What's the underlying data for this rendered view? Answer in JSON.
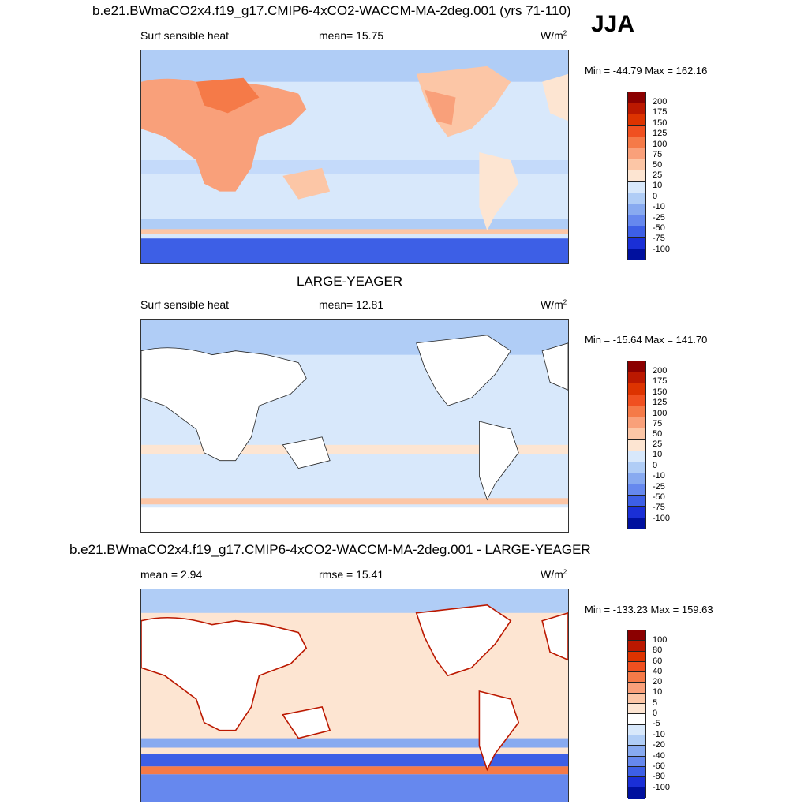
{
  "season": "JJA",
  "panels": [
    {
      "title": "b.e21.BWmaCO2x4.f19_g17.CMIP6-4xCO2-WACCM-MA-2deg.001 (yrs 71-110)",
      "left_label": "Surf sensible heat",
      "mid_label": "mean=  15.75",
      "units": "W/m",
      "units_sup": "2",
      "minmax": "Min = -44.79 Max = 162.16",
      "colorbar_labels": [
        "200",
        "175",
        "150",
        "125",
        "100",
        "75",
        "50",
        "25",
        "10",
        "0",
        "-10",
        "-25",
        "-50",
        "-75",
        "-100"
      ],
      "colorbar_colors": [
        "#8b0000",
        "#bb1800",
        "#dd3300",
        "#f05020",
        "#f57a48",
        "#f9a07a",
        "#fcc6a6",
        "#fde5d2",
        "#d8e8fb",
        "#b0cdf6",
        "#88aaf0",
        "#6688ee",
        "#3d5fe6",
        "#1a2fd6",
        "#00109e"
      ]
    },
    {
      "title": "LARGE-YEAGER",
      "left_label": "Surf sensible heat",
      "mid_label": "mean=  12.81",
      "units": "W/m",
      "units_sup": "2",
      "minmax": "Min = -15.64 Max = 141.70",
      "colorbar_labels": [
        "200",
        "175",
        "150",
        "125",
        "100",
        "75",
        "50",
        "25",
        "10",
        "0",
        "-10",
        "-25",
        "-50",
        "-75",
        "-100"
      ],
      "colorbar_colors": [
        "#8b0000",
        "#bb1800",
        "#dd3300",
        "#f05020",
        "#f57a48",
        "#f9a07a",
        "#fcc6a6",
        "#fde5d2",
        "#d8e8fb",
        "#b0cdf6",
        "#88aaf0",
        "#6688ee",
        "#3d5fe6",
        "#1a2fd6",
        "#00109e"
      ]
    },
    {
      "title": "b.e21.BWmaCO2x4.f19_g17.CMIP6-4xCO2-WACCM-MA-2deg.001 - LARGE-YEAGER",
      "left_label": "mean =   2.94",
      "mid_label": "rmse =  15.41",
      "units": "W/m",
      "units_sup": "2",
      "minmax": "Min = -133.23 Max = 159.63",
      "colorbar_labels": [
        "100",
        "80",
        "60",
        "40",
        "20",
        "10",
        "5",
        "0",
        "-5",
        "-10",
        "-20",
        "-40",
        "-60",
        "-80",
        "-100"
      ],
      "colorbar_colors": [
        "#8b0000",
        "#bb1800",
        "#dd3300",
        "#f05020",
        "#f57a48",
        "#f9a07a",
        "#fcc6a6",
        "#fde5d2",
        "#ffffff",
        "#d8e8fb",
        "#b0cdf6",
        "#88aaf0",
        "#6688ee",
        "#3d5fe6",
        "#1a2fd6",
        "#00109e"
      ]
    }
  ]
}
